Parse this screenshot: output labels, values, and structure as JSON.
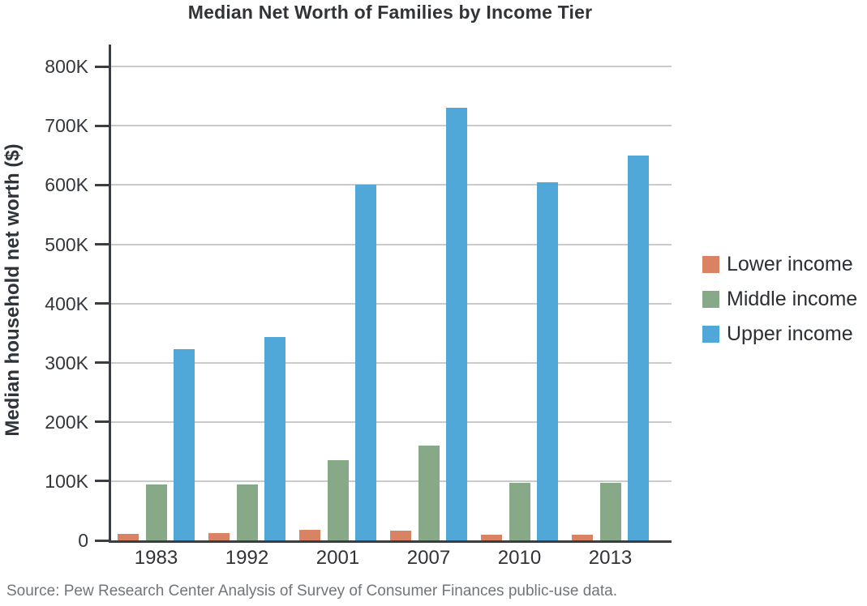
{
  "figure": {
    "source": "Source: Pew Research Center Analysis of Survey of Consumer Finances public-use data."
  },
  "chart_data": {
    "type": "bar",
    "title": "Median Net Worth of Families by Income Tier",
    "xlabel": "",
    "ylabel": "Median household net worth ($)",
    "categories": [
      "1983",
      "1992",
      "2001",
      "2007",
      "2010",
      "2013"
    ],
    "series": [
      {
        "name": "Lower income",
        "color": "#DA8364",
        "values": [
          11000,
          13000,
          18000,
          17000,
          10000,
          9000
        ]
      },
      {
        "name": "Middle income",
        "color": "#87A987",
        "values": [
          95000,
          95000,
          135000,
          160000,
          97000,
          97000
        ]
      },
      {
        "name": "Upper income",
        "color": "#4FA8D8",
        "values": [
          323000,
          344000,
          600000,
          730000,
          605000,
          650000
        ]
      }
    ],
    "y_ticks": [
      {
        "value": 0,
        "label": "0"
      },
      {
        "value": 100000,
        "label": "100K"
      },
      {
        "value": 200000,
        "label": "200K"
      },
      {
        "value": 300000,
        "label": "300K"
      },
      {
        "value": 400000,
        "label": "400K"
      },
      {
        "value": 500000,
        "label": "500K"
      },
      {
        "value": 600000,
        "label": "600K"
      },
      {
        "value": 700000,
        "label": "700K"
      },
      {
        "value": 800000,
        "label": "800K"
      }
    ],
    "ylim": [
      0,
      800000
    ],
    "grid": true,
    "legend_position": "right",
    "axis_color": "#3A3E42",
    "gridline_color": "#C8CACC"
  }
}
